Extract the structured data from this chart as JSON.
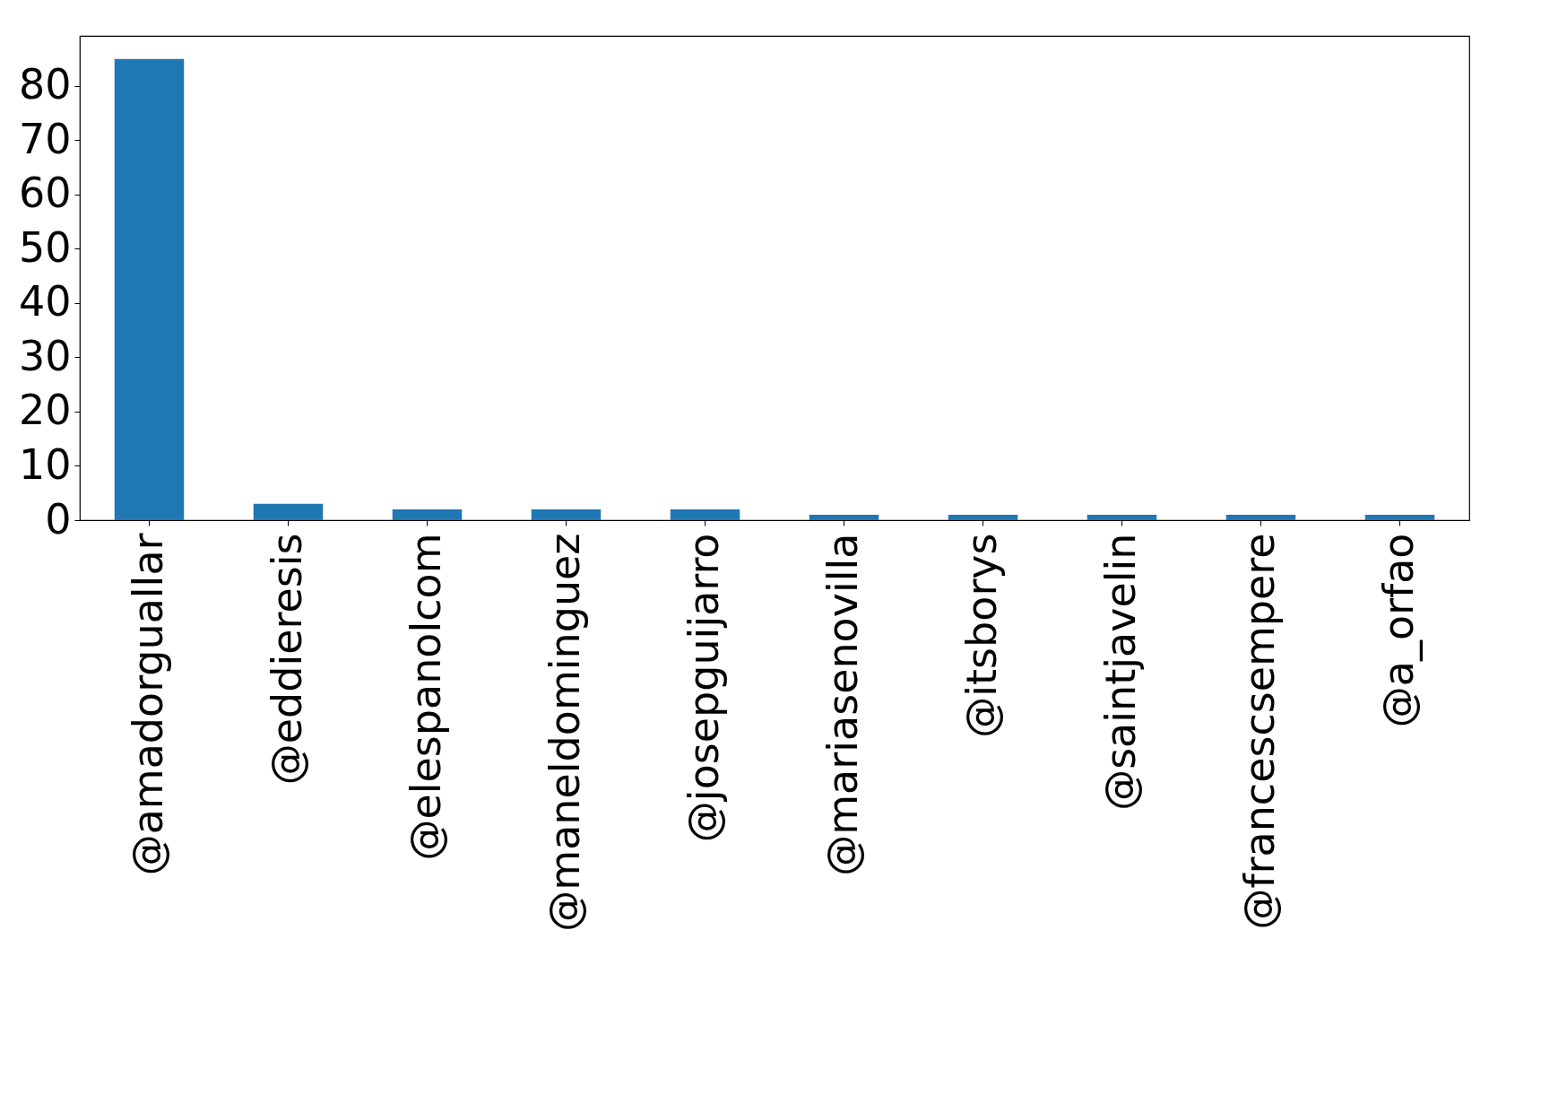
{
  "chart_data": {
    "type": "bar",
    "categories": [
      "@amadorguallar",
      "@eddieresis",
      "@elespanolcom",
      "@maneldominguez",
      "@josepguijarro",
      "@mariasenovilla",
      "@itsborys",
      "@saintjavelin",
      "@francescsempere",
      "@a_orfao"
    ],
    "values": [
      85,
      3,
      2,
      2,
      2,
      1,
      1,
      1,
      1,
      1
    ],
    "color": "#1f77b4",
    "ylim": [
      0,
      89.25
    ],
    "yticks": [
      0,
      10,
      20,
      30,
      40,
      50,
      60,
      70,
      80
    ],
    "grid": false
  }
}
